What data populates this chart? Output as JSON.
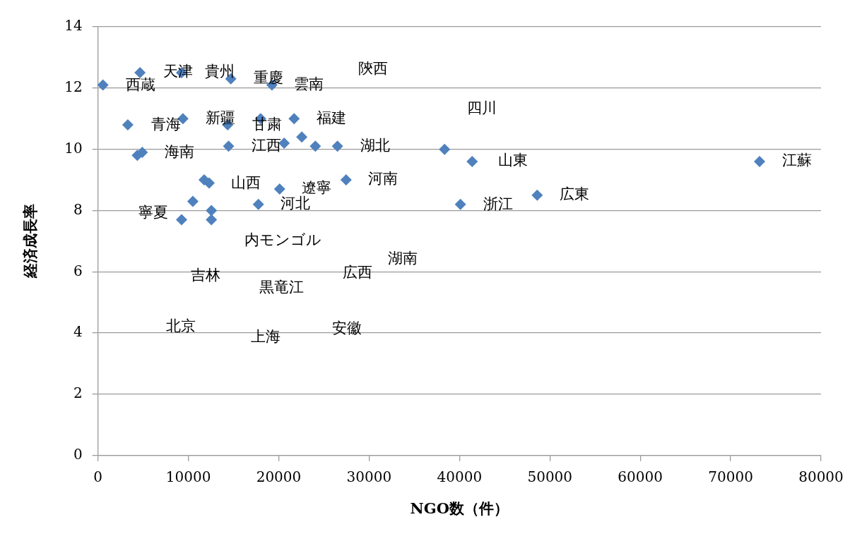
{
  "chart_data": {
    "type": "scatter",
    "xlabel": "NGO数（件）",
    "ylabel": "経済成長率",
    "xlim": [
      0,
      80000
    ],
    "xticks": [
      0,
      10000,
      20000,
      30000,
      40000,
      50000,
      60000,
      70000,
      80000
    ],
    "ylim": [
      0,
      14
    ],
    "yticks": [
      0,
      2,
      4,
      6,
      8,
      10,
      12,
      14
    ],
    "grid": "y",
    "marker": "diamond",
    "legend": false,
    "series": [
      {
        "color": "#4f81bd",
        "x": [
          550,
          4650,
          9250,
          14700,
          19250,
          3300,
          9400,
          14350,
          18000,
          21700,
          22550,
          20600,
          24050,
          26500,
          14450,
          4350,
          4900,
          11750,
          12300,
          20100,
          27450,
          10500,
          12550,
          12550,
          9250,
          17750,
          38350,
          41400,
          40100,
          48600,
          73200
        ],
        "values": [
          12.1,
          12.5,
          12.5,
          12.3,
          12.1,
          10.8,
          11.0,
          10.8,
          11.0,
          11.0,
          10.4,
          10.2,
          10.1,
          10.1,
          10.1,
          9.8,
          9.9,
          9.0,
          8.9,
          8.7,
          9.0,
          8.3,
          8.0,
          7.7,
          7.7,
          8.2,
          10.0,
          9.6,
          8.2,
          8.5,
          9.6
        ]
      }
    ],
    "annotations": [
      "天津",
      "貴州",
      "西蔵",
      "重慶",
      "雲南",
      "陝西",
      "四川",
      "青海",
      "新疆",
      "甘粛",
      "福建",
      "江西",
      "湖北",
      "海南",
      "山東",
      "江蘇",
      "山西",
      "遼寧",
      "河南",
      "河北",
      "浙江",
      "広東",
      "寧夏",
      "内モンゴル",
      "湖南",
      "吉林",
      "広西",
      "黒竜江",
      "北京",
      "上海",
      "安徽"
    ]
  }
}
